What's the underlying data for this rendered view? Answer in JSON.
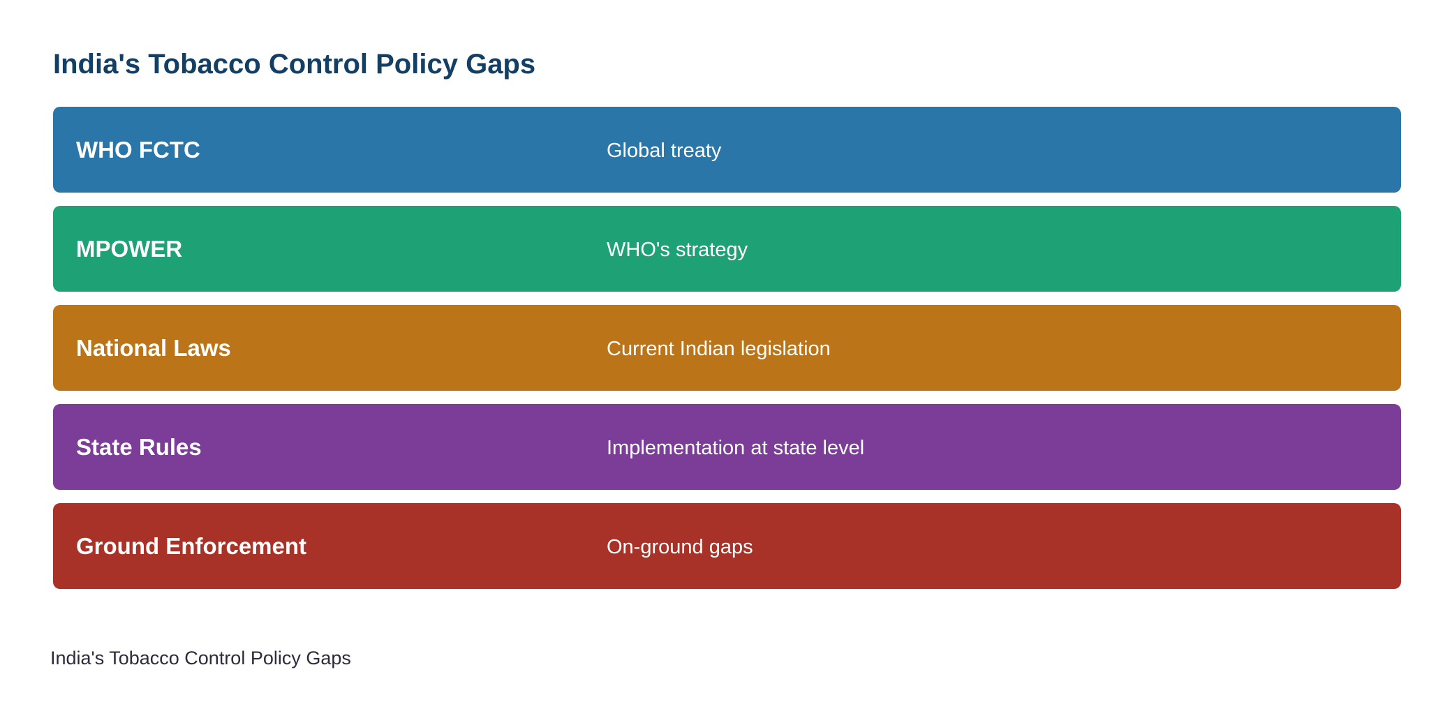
{
  "title": "India's Tobacco Control Policy Gaps",
  "rows": [
    {
      "label": "WHO FCTC",
      "description": "Global treaty"
    },
    {
      "label": "MPOWER",
      "description": "WHO's strategy"
    },
    {
      "label": "National Laws",
      "description": "Current Indian legislation"
    },
    {
      "label": "State Rules",
      "description": "Implementation at state level"
    },
    {
      "label": "Ground Enforcement",
      "description": "On-ground gaps"
    }
  ],
  "caption": "India's Tobacco Control Policy Gaps"
}
